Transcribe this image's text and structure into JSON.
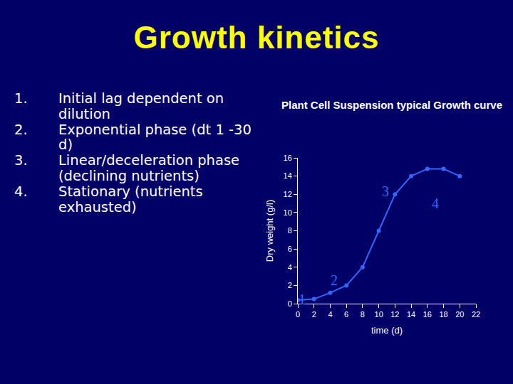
{
  "slide": {
    "title": "Growth kinetics",
    "items": [
      {
        "number": "1.",
        "text": "Initial lag dependent on dilution"
      },
      {
        "number": "2.",
        "text": "Exponential phase (dt 1 -30 d)"
      },
      {
        "number": "3.",
        "text": "Linear/deceleration phase (declining nutrients)"
      },
      {
        "number": "4.",
        "text": "Stationary (nutrients exhausted)"
      }
    ]
  },
  "chart_data": {
    "type": "line",
    "title": "Plant Cell Suspension typical Growth curve",
    "x_label": "time (d)",
    "y_label": "Dry weight (g/l)",
    "x": [
      0,
      2,
      4,
      6,
      8,
      10,
      12,
      14,
      16,
      18,
      20
    ],
    "values": [
      0.4,
      0.5,
      1.2,
      2,
      4,
      8,
      12,
      14,
      14.8,
      14.8,
      14
    ],
    "color": "#3366ff",
    "marker": "circle",
    "line_style": "solid",
    "xlim": [
      0,
      22
    ],
    "xticks": [
      0,
      2,
      4,
      6,
      8,
      10,
      12,
      14,
      16,
      18,
      20,
      22
    ],
    "ylim": [
      0,
      16
    ],
    "yticks": [
      0,
      2,
      4,
      6,
      8,
      10,
      12,
      14,
      16
    ],
    "grid": false,
    "annotations": [
      {
        "text": "1",
        "x": 0.5,
        "y": 0.5
      },
      {
        "text": "2",
        "x": 4.5,
        "y": 2.6
      },
      {
        "text": "3",
        "x": 10.8,
        "y": 12.3
      },
      {
        "text": "4",
        "x": 17,
        "y": 11
      }
    ]
  }
}
